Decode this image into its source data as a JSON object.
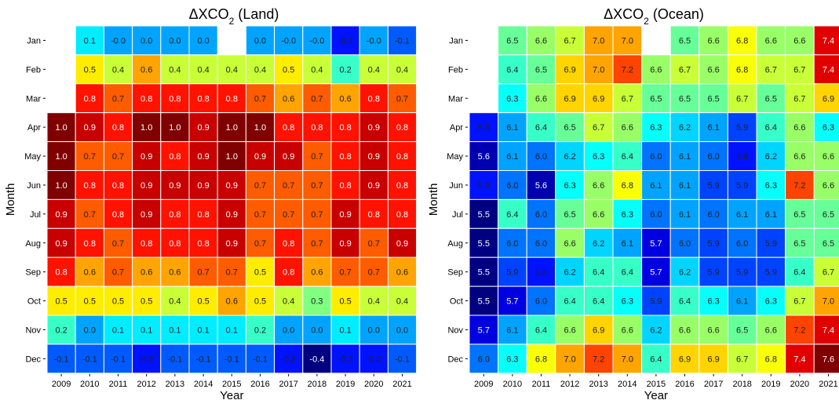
{
  "chart_data": [
    {
      "type": "heatmap",
      "title": "ΔXCO",
      "title_sub": "2",
      "title_suffix": " (Land)",
      "xlabel": "Year",
      "ylabel": "Month",
      "x": [
        "2009",
        "2010",
        "2011",
        "2012",
        "2013",
        "2014",
        "2015",
        "2016",
        "2017",
        "2018",
        "2019",
        "2020",
        "2021"
      ],
      "y": [
        "Jan",
        "Feb",
        "Mar",
        "Apr",
        "May",
        "Jun",
        "Jul",
        "Aug",
        "Sep",
        "Oct",
        "Nov",
        "Dec"
      ],
      "vmin": -0.4,
      "vmax": 1.0,
      "values": [
        [
          null,
          0.1,
          -0.0,
          0.0,
          0.0,
          0.0,
          null,
          0.0,
          -0.0,
          -0.0,
          -0.2,
          -0.0,
          -0.1
        ],
        [
          null,
          0.5,
          0.4,
          0.6,
          0.4,
          0.4,
          0.4,
          0.4,
          0.5,
          0.4,
          0.2,
          0.4,
          0.4
        ],
        [
          null,
          0.8,
          0.7,
          0.8,
          0.8,
          0.8,
          0.8,
          0.7,
          0.6,
          0.7,
          0.6,
          0.8,
          0.7
        ],
        [
          1.0,
          0.9,
          0.8,
          1.0,
          1.0,
          0.9,
          1.0,
          1.0,
          0.8,
          0.8,
          0.8,
          0.9,
          0.8
        ],
        [
          1.0,
          0.7,
          0.7,
          0.9,
          0.8,
          0.9,
          1.0,
          0.9,
          0.9,
          0.7,
          0.8,
          0.9,
          0.8
        ],
        [
          1.0,
          0.8,
          0.8,
          0.9,
          0.9,
          0.9,
          0.9,
          0.7,
          0.7,
          0.7,
          0.8,
          0.9,
          0.8
        ],
        [
          0.9,
          0.7,
          0.8,
          0.9,
          0.8,
          0.8,
          0.9,
          0.7,
          0.7,
          0.7,
          0.9,
          0.8,
          0.8
        ],
        [
          0.9,
          0.8,
          0.7,
          0.8,
          0.8,
          0.8,
          0.9,
          0.7,
          0.8,
          0.7,
          0.9,
          0.7,
          0.9
        ],
        [
          0.8,
          0.6,
          0.7,
          0.6,
          0.6,
          0.7,
          0.7,
          0.5,
          0.8,
          0.6,
          0.7,
          0.7,
          0.6
        ],
        [
          0.5,
          0.5,
          0.5,
          0.5,
          0.4,
          0.5,
          0.6,
          0.5,
          0.4,
          0.3,
          0.5,
          0.4,
          0.4
        ],
        [
          0.2,
          0.0,
          0.1,
          0.1,
          0.1,
          0.1,
          0.1,
          0.2,
          0.0,
          0.0,
          0.1,
          0.0,
          0.0
        ],
        [
          -0.1,
          -0.1,
          -0.1,
          -0.2,
          -0.1,
          -0.1,
          -0.1,
          -0.1,
          -0.2,
          -0.4,
          -0.2,
          -0.2,
          -0.1
        ]
      ]
    },
    {
      "type": "heatmap",
      "title": "ΔXCO",
      "title_sub": "2",
      "title_suffix": " (Ocean)",
      "xlabel": "Year",
      "ylabel": "Month",
      "x": [
        "2009",
        "2010",
        "2011",
        "2012",
        "2013",
        "2014",
        "2015",
        "2016",
        "2017",
        "2018",
        "2019",
        "2020",
        "2021"
      ],
      "y": [
        "Jan",
        "Feb",
        "Mar",
        "Apr",
        "May",
        "Jun",
        "Jul",
        "Aug",
        "Sep",
        "Oct",
        "Nov",
        "Dec"
      ],
      "vmin": 5.5,
      "vmax": 7.6,
      "values": [
        [
          null,
          6.5,
          6.6,
          6.7,
          7.0,
          7.0,
          null,
          6.5,
          6.6,
          6.8,
          6.6,
          6.6,
          7.4
        ],
        [
          null,
          6.4,
          6.5,
          6.9,
          7.0,
          7.2,
          6.6,
          6.7,
          6.6,
          6.8,
          6.7,
          6.7,
          7.4
        ],
        [
          null,
          6.3,
          6.6,
          6.9,
          6.9,
          6.7,
          6.5,
          6.5,
          6.5,
          6.7,
          6.5,
          6.7,
          6.9
        ],
        [
          5.8,
          6.1,
          6.4,
          6.5,
          6.7,
          6.6,
          6.3,
          6.2,
          6.1,
          5.9,
          6.4,
          6.6,
          6.3
        ],
        [
          5.6,
          6.1,
          6.0,
          6.2,
          6.3,
          6.4,
          6.0,
          6.1,
          6.0,
          5.8,
          6.2,
          6.6,
          6.6
        ],
        [
          5.8,
          6.0,
          5.6,
          6.3,
          6.6,
          6.8,
          6.1,
          6.1,
          5.9,
          5.9,
          6.3,
          7.2,
          6.6
        ],
        [
          5.5,
          6.4,
          6.0,
          6.5,
          6.6,
          6.3,
          6.0,
          6.1,
          6.0,
          6.1,
          6.1,
          6.5,
          6.5
        ],
        [
          5.5,
          6.0,
          6.0,
          6.6,
          6.2,
          6.1,
          5.7,
          6.0,
          5.9,
          6.0,
          5.9,
          6.5,
          6.5
        ],
        [
          5.5,
          5.9,
          5.8,
          6.2,
          6.4,
          6.4,
          5.7,
          6.2,
          5.9,
          5.9,
          5.9,
          6.4,
          6.7
        ],
        [
          5.5,
          5.7,
          6.0,
          6.4,
          6.4,
          6.3,
          5.9,
          6.4,
          6.3,
          6.1,
          6.3,
          6.7,
          7.0
        ],
        [
          5.7,
          6.1,
          6.4,
          6.6,
          6.9,
          6.6,
          6.2,
          6.6,
          6.6,
          6.5,
          6.6,
          7.2,
          7.4
        ],
        [
          6.0,
          6.3,
          6.8,
          7.0,
          7.2,
          7.0,
          6.4,
          6.9,
          6.9,
          6.7,
          6.8,
          7.4,
          7.6
        ]
      ]
    }
  ]
}
